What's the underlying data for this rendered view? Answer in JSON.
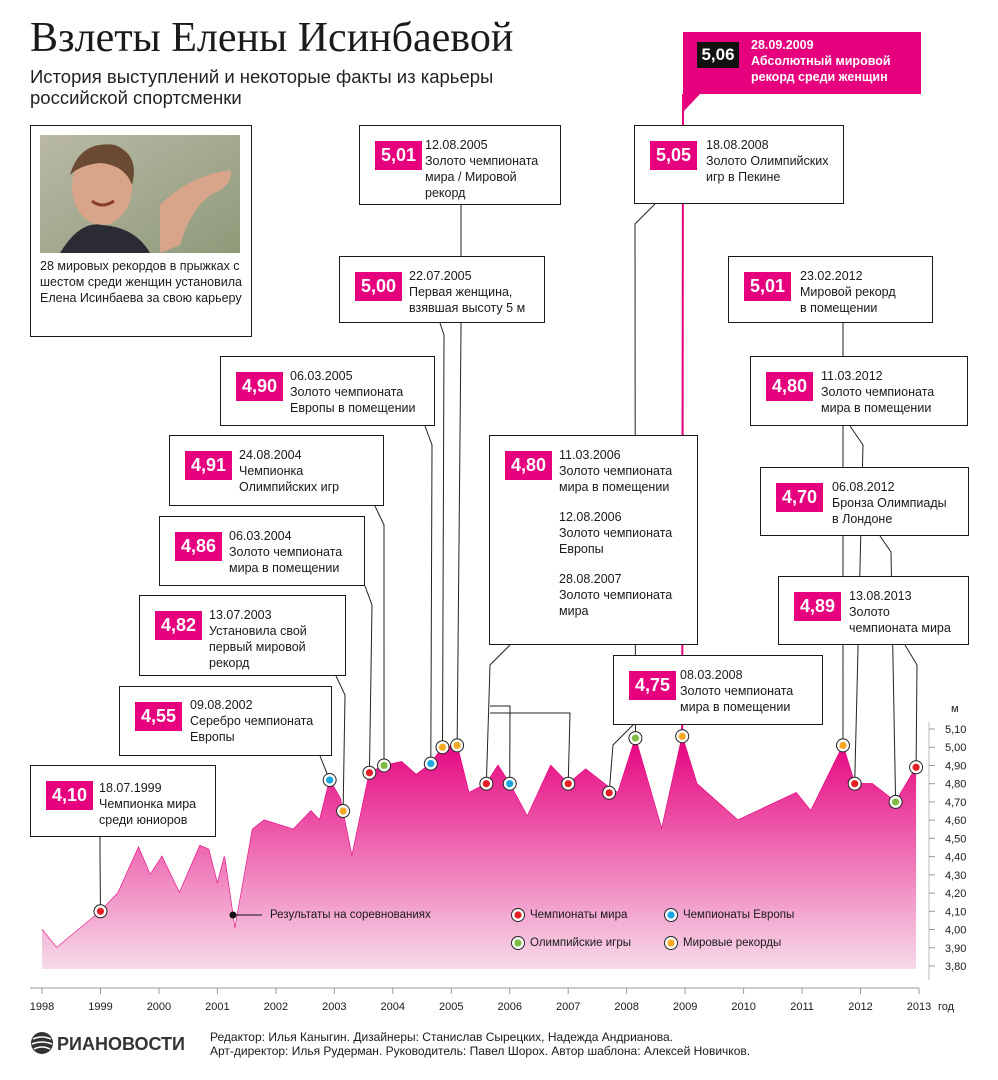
{
  "header": {
    "title": "Взлеты Елены Исинбаевой",
    "subtitle": "История выступлений и некоторые факты из карьеры российской спортсменки"
  },
  "photo": {
    "caption": "28 мировых рекордов в прыжках с шестом среди женщин установила Елена Исинбаева за свою карьеру"
  },
  "chart_data": {
    "type": "area",
    "ylabel": "м",
    "xlabel": "год",
    "ylim": [
      3.8,
      5.1
    ],
    "y_ticks": [
      "3,80",
      "3,90",
      "4,00",
      "4,10",
      "4,20",
      "4,30",
      "4,40",
      "4,50",
      "4,60",
      "4,70",
      "4,80",
      "4,90",
      "5,00",
      "5,10"
    ],
    "x_ticks": [
      "1998",
      "1999",
      "2000",
      "2001",
      "2002",
      "2003",
      "2004",
      "2005",
      "2006",
      "2007",
      "2008",
      "2009",
      "2010",
      "2011",
      "2012",
      "2013"
    ],
    "series": [
      {
        "name": "Результаты на соревнованиях",
        "color": "#e6007e",
        "points": [
          [
            1998.0,
            4.0
          ],
          [
            1998.25,
            3.9
          ],
          [
            1999.0,
            4.1
          ],
          [
            1999.3,
            4.2
          ],
          [
            1999.65,
            4.45
          ],
          [
            1999.85,
            4.3
          ],
          [
            2000.05,
            4.4
          ],
          [
            2000.35,
            4.2
          ],
          [
            2000.7,
            4.46
          ],
          [
            2000.85,
            4.44
          ],
          [
            2001.0,
            4.25
          ],
          [
            2001.12,
            4.4
          ],
          [
            2001.3,
            4.0
          ],
          [
            2001.6,
            4.55
          ],
          [
            2001.8,
            4.6
          ],
          [
            2002.3,
            4.55
          ],
          [
            2002.6,
            4.65
          ],
          [
            2002.75,
            4.6
          ],
          [
            2002.92,
            4.82
          ],
          [
            2003.1,
            4.72
          ],
          [
            2003.3,
            4.4
          ],
          [
            2003.6,
            4.86
          ],
          [
            2003.85,
            4.9
          ],
          [
            2004.15,
            4.92
          ],
          [
            2004.4,
            4.85
          ],
          [
            2004.65,
            4.91
          ],
          [
            2004.85,
            5.0
          ],
          [
            2005.1,
            5.01
          ],
          [
            2005.3,
            4.75
          ],
          [
            2005.6,
            4.8
          ],
          [
            2005.8,
            4.9
          ],
          [
            2006.0,
            4.8
          ],
          [
            2006.3,
            4.62
          ],
          [
            2006.7,
            4.9
          ],
          [
            2007.0,
            4.8
          ],
          [
            2007.3,
            4.88
          ],
          [
            2007.7,
            4.78
          ],
          [
            2007.85,
            4.75
          ],
          [
            2008.15,
            5.05
          ],
          [
            2008.6,
            4.55
          ],
          [
            2008.95,
            5.06
          ],
          [
            2009.2,
            4.8
          ],
          [
            2009.9,
            4.6
          ],
          [
            2010.9,
            4.75
          ],
          [
            2011.15,
            4.65
          ],
          [
            2011.7,
            5.01
          ],
          [
            2011.9,
            4.8
          ],
          [
            2012.2,
            4.8
          ],
          [
            2012.6,
            4.7
          ],
          [
            2012.95,
            4.89
          ]
        ]
      }
    ],
    "markers": [
      {
        "date": "18.07.1999",
        "value": 4.1,
        "type": "Чемпионаты мира"
      },
      {
        "date": "09.08.2002",
        "value": 4.55,
        "type": "Чемпионаты Европы"
      },
      {
        "date": "13.07.2003",
        "value": 4.82,
        "type": "Мировые рекорды"
      },
      {
        "date": "06.03.2004",
        "value": 4.86,
        "type": "Чемпионаты мира"
      },
      {
        "date": "24.08.2004",
        "value": 4.91,
        "type": "Олимпийские игры"
      },
      {
        "date": "06.03.2005",
        "value": 4.9,
        "type": "Чемпионаты Европы"
      },
      {
        "date": "22.07.2005",
        "value": 5.0,
        "type": "Мировые рекорды"
      },
      {
        "date": "12.08.2005",
        "value": 5.01,
        "type": "Мировые рекорды"
      },
      {
        "date": "11.03.2006",
        "value": 4.8,
        "type": "Чемпионаты мира"
      },
      {
        "date": "12.08.2006",
        "value": 4.8,
        "type": "Чемпионаты Европы"
      },
      {
        "date": "28.08.2007",
        "value": 4.8,
        "type": "Чемпионаты мира"
      },
      {
        "date": "08.03.2008",
        "value": 4.75,
        "type": "Чемпионаты мира"
      },
      {
        "date": "18.08.2008",
        "value": 5.05,
        "type": "Олимпийские игры"
      },
      {
        "date": "28.09.2009",
        "value": 5.06,
        "type": "Мировые рекорды"
      },
      {
        "date": "23.02.2012",
        "value": 5.01,
        "type": "Мировые рекорды"
      },
      {
        "date": "11.03.2012",
        "value": 4.8,
        "type": "Чемпионаты мира"
      },
      {
        "date": "06.08.2012",
        "value": 4.7,
        "type": "Олимпийские игры"
      },
      {
        "date": "13.08.2013",
        "value": 4.89,
        "type": "Чемпионаты мира"
      }
    ],
    "legend": [
      {
        "label": "Результаты на соревнованиях",
        "kind": "line"
      },
      {
        "label": "Чемпионаты мира",
        "color": "#e31e24"
      },
      {
        "label": "Чемпионаты Европы",
        "color": "#1aa6e0"
      },
      {
        "label": "Олимпийские игры",
        "color": "#7dbb42"
      },
      {
        "label": "Мировые рекорды",
        "color": "#f7a823"
      }
    ]
  },
  "callouts": [
    {
      "id": "c1999",
      "value": "4,10",
      "date": "18.07.1999",
      "text": [
        "Чемпионка мира",
        "среди юниоров"
      ]
    },
    {
      "id": "c2002",
      "value": "4,55",
      "date": "09.08.2002",
      "text": [
        "Серебро чемпионата",
        "Европы"
      ]
    },
    {
      "id": "c2003",
      "value": "4,82",
      "date": "13.07.2003",
      "text": [
        "Установила свой",
        "первый мировой",
        "рекорд"
      ]
    },
    {
      "id": "c2004a",
      "value": "4,86",
      "date": "06.03.2004",
      "text": [
        "Золото чемпионата",
        "мира в помещении"
      ]
    },
    {
      "id": "c2004b",
      "value": "4,91",
      "date": "24.08.2004",
      "text": [
        "Чемпионка",
        "Олимпийских игр"
      ]
    },
    {
      "id": "c2005a",
      "value": "4,90",
      "date": "06.03.2005",
      "text": [
        "Золото чемпионата",
        "Европы в помещении"
      ]
    },
    {
      "id": "c2005b",
      "value": "5,00",
      "date": "22.07.2005",
      "text": [
        "Первая женщина,",
        "взявшая высоту 5 м"
      ]
    },
    {
      "id": "c2005c",
      "value": "5,01",
      "date": "12.08.2005",
      "text": [
        "Золото чемпионата",
        "мира / Мировой",
        "рекорд"
      ]
    },
    {
      "id": "c2006",
      "value": "4,80",
      "date": "11.03.2006",
      "text": [
        "Золото чемпионата",
        "мира в помещении"
      ],
      "date2": "12.08.2006",
      "text2": [
        "Золото чемпионата",
        "Европы"
      ],
      "date3": "28.08.2007",
      "text3": [
        "Золото чемпионата",
        "мира"
      ]
    },
    {
      "id": "c2008a",
      "value": "4,75",
      "date": "08.03.2008",
      "text": [
        "Золото чемпионата",
        "мира в помещении"
      ]
    },
    {
      "id": "c2008b",
      "value": "5,05",
      "date": "18.08.2008",
      "text": [
        "Золото Олимпийских",
        "игр в Пекине"
      ]
    },
    {
      "id": "c2009",
      "value": "5,06",
      "date": "28.09.2009",
      "text": [
        "Абсолютный мировой",
        "рекорд среди женщин"
      ]
    },
    {
      "id": "c2012a",
      "value": "5,01",
      "date": "23.02.2012",
      "text": [
        "Мировой рекорд",
        "в помещении"
      ]
    },
    {
      "id": "c2012b",
      "value": "4,80",
      "date": "11.03.2012",
      "text": [
        "Золото чемпионата",
        "мира в помещении"
      ]
    },
    {
      "id": "c2012c",
      "value": "4,70",
      "date": "06.08.2012",
      "text": [
        "Бронза Олимпиады",
        "в Лондоне"
      ]
    },
    {
      "id": "c2013",
      "value": "4,89",
      "date": "13.08.2013",
      "text": [
        "Золото",
        "чемпионата мира"
      ]
    }
  ],
  "footer": {
    "logo": "РИАНОВОСТИ",
    "credits1": "Редактор: Илья Каныгин. Дизайнеры: Станислав Сырецких, Надежда Андрианова.",
    "credits2": "Арт-директор: Илья Рудерман. Руководитель: Павел Шорох. Автор шаблона: Алексей Новичков."
  }
}
